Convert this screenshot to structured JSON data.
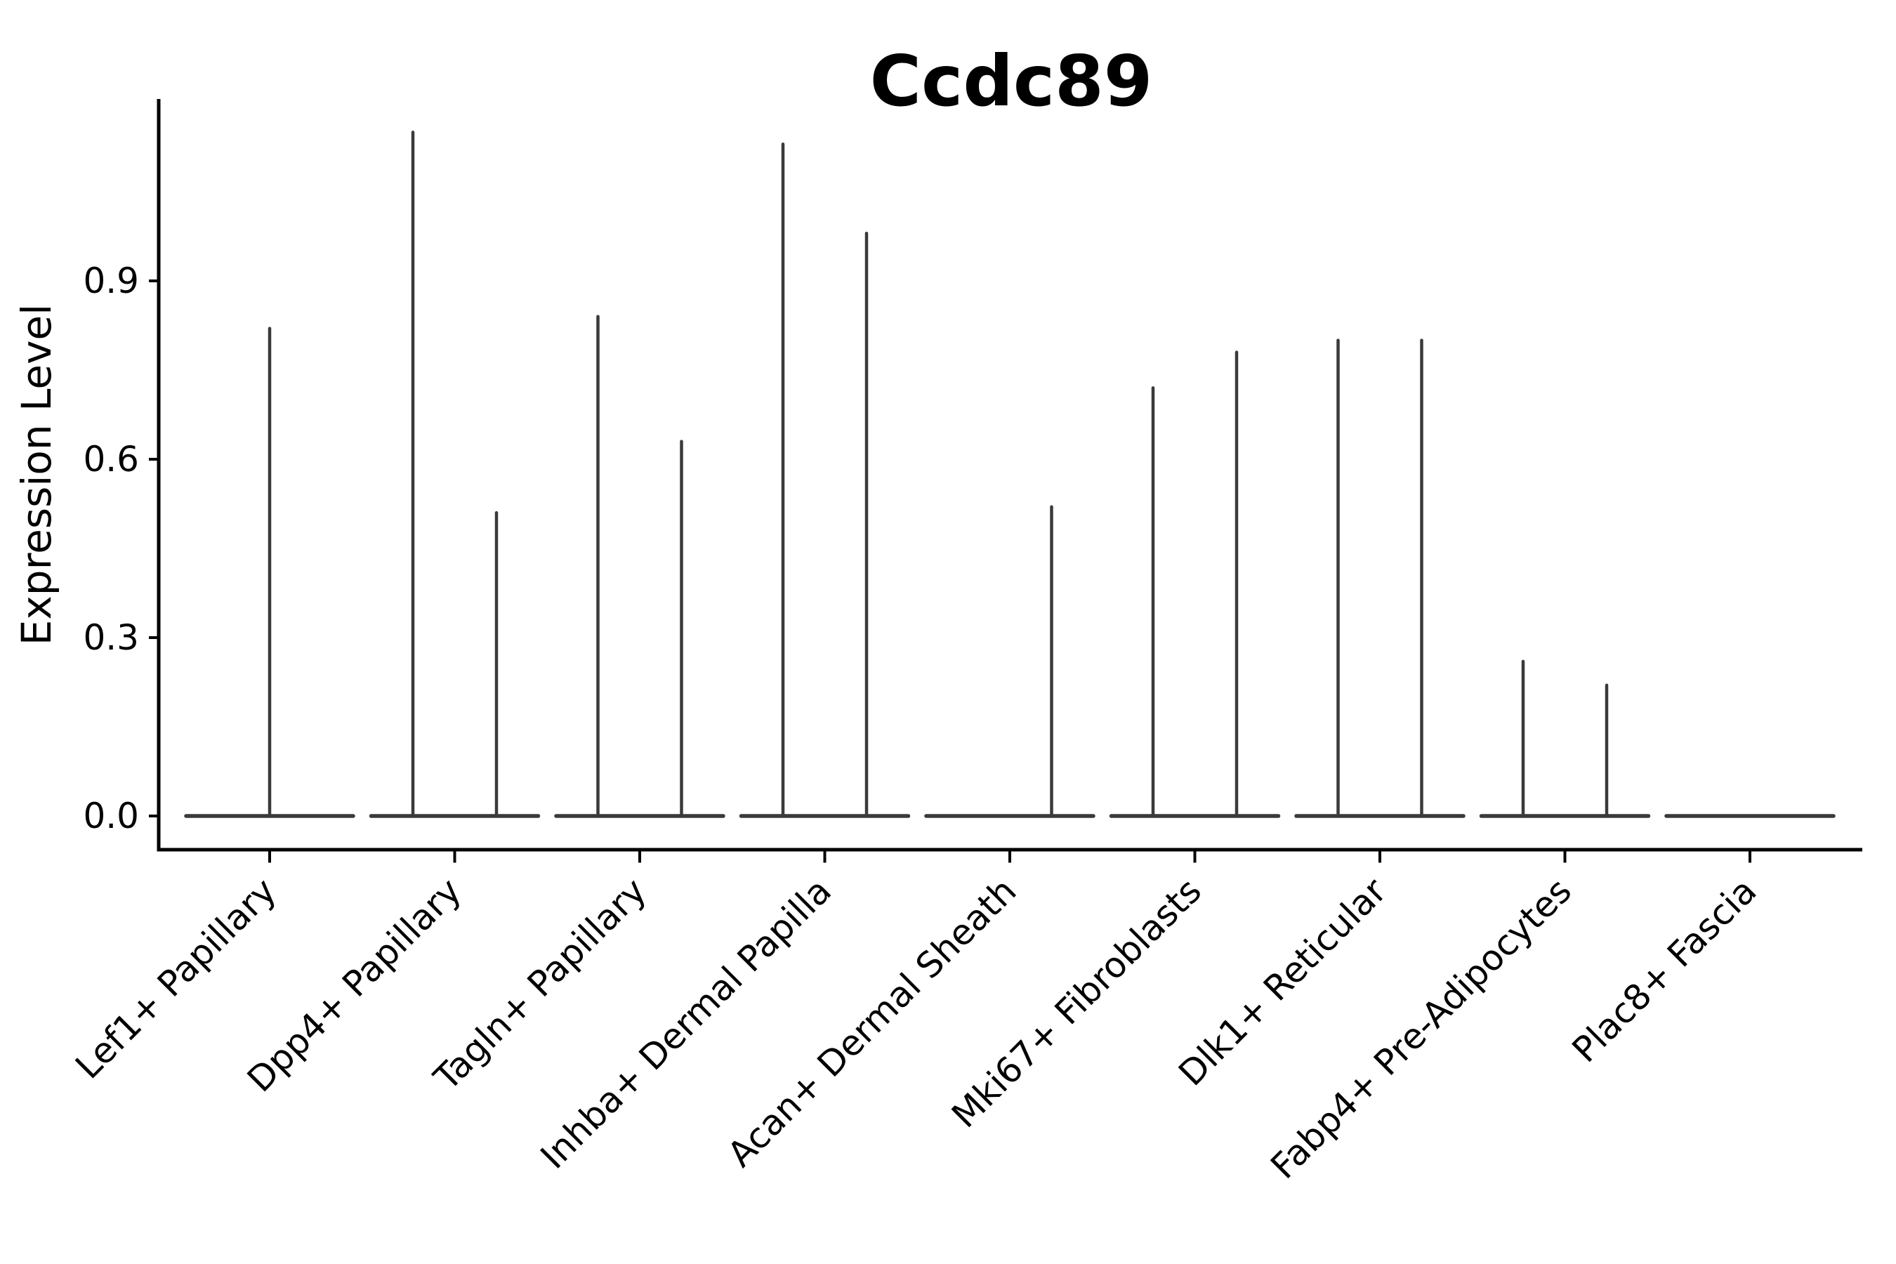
{
  "figure": {
    "title": "Ccdc89",
    "y_axis_label": "Expression Level",
    "x_axis_label": ""
  },
  "colors": {
    "violin_stroke": "#3a3a3a",
    "axis": "#000000",
    "text": "#000000",
    "background": "#ffffff"
  },
  "chart_data": {
    "type": "violin",
    "title": "Ccdc89",
    "subtitle": "",
    "ylabel": "Expression Level",
    "xlabel": "",
    "legend_position": "none",
    "grid": false,
    "ylim": [
      -0.06,
      1.21
    ],
    "ytick_labels": [
      "0.0",
      "0.3",
      "0.6",
      "0.9"
    ],
    "ytick_values": [
      0.0,
      0.3,
      0.6,
      0.9
    ],
    "x_tick_rotation_deg": 45,
    "categories": [
      "Lef1+ Papillary",
      "Dpp4+ Papillary",
      "Tagln+ Papillary",
      "Inhba+ Dermal Papilla",
      "Acan+ Dermal Sheath",
      "Mki67+ Fibroblasts",
      "Dlk1+ Reticular",
      "Fabp4+ Pre-Adipocytes",
      "Plac8+ Fascia"
    ],
    "baseline_value": 0.0,
    "violins": [
      {
        "category": "Lef1+ Papillary",
        "base_at_zero": true,
        "spikes": [
          {
            "pos": "center",
            "max": 0.82
          }
        ]
      },
      {
        "category": "Dpp4+ Papillary",
        "base_at_zero": true,
        "spikes": [
          {
            "pos": "left",
            "max": 1.15
          },
          {
            "pos": "right",
            "max": 0.51
          }
        ]
      },
      {
        "category": "Tagln+ Papillary",
        "base_at_zero": true,
        "spikes": [
          {
            "pos": "left",
            "max": 0.84
          },
          {
            "pos": "right",
            "max": 0.63
          }
        ]
      },
      {
        "category": "Inhba+ Dermal Papilla",
        "base_at_zero": true,
        "spikes": [
          {
            "pos": "left",
            "max": 1.13
          },
          {
            "pos": "right",
            "max": 0.98
          }
        ]
      },
      {
        "category": "Acan+ Dermal Sheath",
        "base_at_zero": true,
        "spikes": [
          {
            "pos": "right",
            "max": 0.52
          }
        ]
      },
      {
        "category": "Mki67+ Fibroblasts",
        "base_at_zero": true,
        "spikes": [
          {
            "pos": "left",
            "max": 0.72
          },
          {
            "pos": "right",
            "max": 0.78
          }
        ]
      },
      {
        "category": "Dlk1+ Reticular",
        "base_at_zero": true,
        "spikes": [
          {
            "pos": "left",
            "max": 0.8
          },
          {
            "pos": "right",
            "max": 0.8
          }
        ]
      },
      {
        "category": "Fabp4+ Pre-Adipocytes",
        "base_at_zero": true,
        "spikes": [
          {
            "pos": "left",
            "max": 0.26
          },
          {
            "pos": "right",
            "max": 0.22
          }
        ]
      },
      {
        "category": "Plac8+ Fascia",
        "base_at_zero": true,
        "spikes": []
      }
    ]
  }
}
